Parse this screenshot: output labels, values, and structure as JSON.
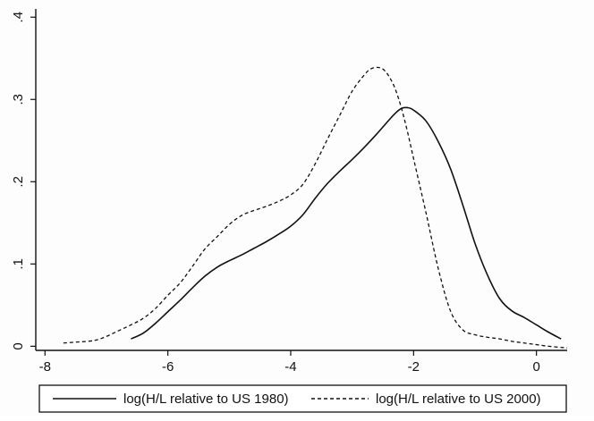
{
  "chart_data": {
    "type": "line",
    "title": "",
    "xlabel": "",
    "ylabel": "",
    "xlim": [
      -8.15,
      0.5
    ],
    "ylim": [
      -0.005,
      0.41
    ],
    "xticks": [
      {
        "value": -8,
        "label": "-8"
      },
      {
        "value": -6,
        "label": "-6"
      },
      {
        "value": -4,
        "label": "-4"
      },
      {
        "value": -2,
        "label": "-2"
      },
      {
        "value": 0,
        "label": "0"
      }
    ],
    "yticks": [
      {
        "value": 0,
        "label": "0"
      },
      {
        "value": 0.1,
        "label": ".1"
      },
      {
        "value": 0.2,
        "label": ".2"
      },
      {
        "value": 0.3,
        "label": ".3"
      },
      {
        "value": 0.4,
        "label": ".4"
      }
    ],
    "grid": false,
    "legend_position": "bottom",
    "series": [
      {
        "name": "log(H/L relative to US 1980)",
        "line_style": "solid",
        "color": "#111111",
        "x": [
          -6.6,
          -6.4,
          -6.2,
          -6.0,
          -5.8,
          -5.6,
          -5.4,
          -5.2,
          -5.0,
          -4.8,
          -4.6,
          -4.4,
          -4.2,
          -4.0,
          -3.8,
          -3.6,
          -3.4,
          -3.2,
          -3.0,
          -2.8,
          -2.6,
          -2.4,
          -2.3,
          -2.2,
          -2.1,
          -2.0,
          -1.8,
          -1.6,
          -1.4,
          -1.2,
          -1.0,
          -0.8,
          -0.6,
          -0.4,
          -0.2,
          0.0,
          0.2,
          0.4
        ],
        "y": [
          0.009,
          0.016,
          0.028,
          0.042,
          0.056,
          0.071,
          0.085,
          0.096,
          0.104,
          0.111,
          0.119,
          0.127,
          0.136,
          0.146,
          0.16,
          0.18,
          0.198,
          0.213,
          0.227,
          0.242,
          0.258,
          0.275,
          0.283,
          0.289,
          0.29,
          0.287,
          0.274,
          0.249,
          0.216,
          0.172,
          0.125,
          0.087,
          0.058,
          0.043,
          0.035,
          0.026,
          0.017,
          0.009
        ]
      },
      {
        "name": "log(H/L relative to US 2000)",
        "line_style": "dashed",
        "color": "#111111",
        "x": [
          -7.7,
          -7.5,
          -7.2,
          -7.0,
          -6.8,
          -6.6,
          -6.4,
          -6.2,
          -6.0,
          -5.8,
          -5.6,
          -5.4,
          -5.2,
          -5.0,
          -4.8,
          -4.6,
          -4.4,
          -4.2,
          -4.0,
          -3.8,
          -3.6,
          -3.4,
          -3.2,
          -3.0,
          -2.8,
          -2.7,
          -2.6,
          -2.5,
          -2.4,
          -2.3,
          -2.2,
          -2.1,
          -2.0,
          -1.8,
          -1.6,
          -1.4,
          -1.2,
          -1.0,
          -0.8,
          -0.6,
          -0.4,
          -0.2,
          0.0,
          0.2,
          0.5
        ],
        "y": [
          0.004,
          0.005,
          0.007,
          0.012,
          0.019,
          0.026,
          0.034,
          0.046,
          0.062,
          0.077,
          0.097,
          0.118,
          0.133,
          0.148,
          0.159,
          0.165,
          0.17,
          0.176,
          0.184,
          0.197,
          0.222,
          0.252,
          0.281,
          0.31,
          0.33,
          0.337,
          0.339,
          0.337,
          0.328,
          0.313,
          0.29,
          0.261,
          0.228,
          0.163,
          0.095,
          0.043,
          0.02,
          0.014,
          0.011,
          0.009,
          0.006,
          0.004,
          0.002,
          0.0,
          -0.002
        ]
      }
    ]
  }
}
